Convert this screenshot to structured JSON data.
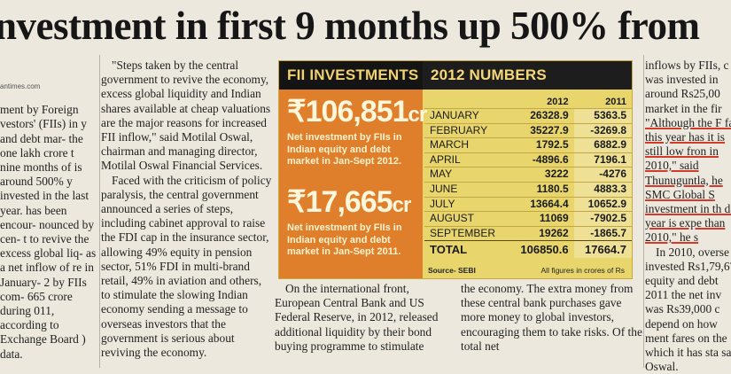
{
  "headline": "nvestment in first 9 months up 500% from",
  "col1": {
    "source": "antimes.com",
    "text": "ment by Foreign vestors' (FIIs) in y and debt mar- the one lakh crore t nine months of is around 500% y invested in the last year. has been encour- nounced by cen- t to revive the excess global liq- as a net inflow of re in January- 2 by FIIs com- 665 crore during 011, according to Exchange Board ) data."
  },
  "col2": {
    "p1": "\"Steps taken by the central government to revive the economy, excess global liquidity and Indian shares available at cheap valuations are the major reasons for increased FII inflow,\" said Motilal Oswal, chairman and managing director, Motilal Oswal Financial Services.",
    "p2": "Faced with the criticism of policy paralysis, the central government announced a series of steps, including cabinet approval to raise the FDI cap in the insurance sector, allowing 49% equity in pension sector, 51% FDI in multi-brand retail, 49% in aviation and others, to stimulate the slowing Indian economy sending a message to overseas investors that the government is serious about reviving the economy."
  },
  "col3": {
    "p1": "On the international front, European Central Bank and US Federal Reserve, in 2012, released additional liquidity by their bond buying programme to stimulate"
  },
  "col4": {
    "p1": "the economy. The extra money from these central bank purchases gave more money to global investors, encouraging them to take risks. Of the total net"
  },
  "col5": {
    "p1": "inflows by FIIs, c was invested in around Rs25,00 market in the fir",
    "quote": "\"Although the F far this year has it is still low fron in 2010,\" said Thunuguntla, he SMC Global S investment in th dar year is expe than 2010,\" he s",
    "p2": "In 2010, overse invested Rs1,79,67 equity and debt 2011 the net inv was Rs39,000 c depend on how ment fares on the which it has sta said Oswal."
  },
  "panel": {
    "left_title": "FII INVESTMENTS",
    "right_title": "2012 NUMBERS",
    "amount1": "₹106,851",
    "amount1_unit": "cr",
    "desc1": "Net investment by FIIs in Indian equity and debt market in Jan-Sept 2012.",
    "amount2": "₹17,665",
    "amount2_unit": "cr",
    "desc2": "Net investment by FIIs in Indian equity and debt market in Jan-Sept 2011.",
    "source": "Source- SEBI",
    "note": "All figures in crores of Rs"
  },
  "table": {
    "headers": [
      "",
      "2012",
      "2011"
    ],
    "rows": [
      [
        "JANUARY",
        "26328.9",
        "5363.5"
      ],
      [
        "FEBRUARY",
        "35227.9",
        "-3269.8"
      ],
      [
        "MARCH",
        "1792.5",
        "6882.9"
      ],
      [
        "APRIL",
        "-4896.6",
        "7196.1"
      ],
      [
        "MAY",
        "3222",
        "-4276"
      ],
      [
        "JUNE",
        "1180.5",
        "4883.3"
      ],
      [
        "JULY",
        "13664.4",
        "10652.9"
      ],
      [
        "AUGUST",
        "11069",
        "-7902.5"
      ],
      [
        "SEPTEMBER",
        "19262",
        "-1865.7"
      ]
    ],
    "total": [
      "TOTAL",
      "106850.6",
      "17664.7"
    ]
  },
  "colors": {
    "panel_orange": "#e07f2b",
    "panel_yellow": "#e8d66c",
    "band_dark": "#1d1d1d",
    "accent_red": "#d23a2a"
  }
}
